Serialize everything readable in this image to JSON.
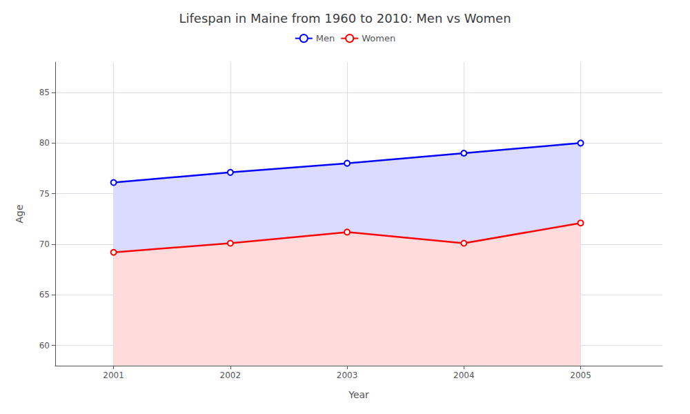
{
  "chart_data": {
    "type": "area",
    "title": "Lifespan in Maine from 1960 to 2010: Men vs Women",
    "xlabel": "Year",
    "ylabel": "Age",
    "x": [
      2001,
      2002,
      2003,
      2004,
      2005
    ],
    "series": [
      {
        "name": "Men",
        "color": "#0000ff",
        "values": [
          76.1,
          77.1,
          78.0,
          79.0,
          80.0
        ]
      },
      {
        "name": "Women",
        "color": "#ff0000",
        "values": [
          69.2,
          70.1,
          71.2,
          70.1,
          72.1
        ]
      }
    ],
    "xlim": [
      2000.5,
      2005.7
    ],
    "xticks": [
      2001,
      2002,
      2003,
      2004,
      2005
    ],
    "ylim": [
      58,
      88
    ],
    "yticks": [
      60,
      65,
      70,
      75,
      80,
      85
    ],
    "grid": true,
    "legend": "top",
    "marker": "circle"
  }
}
